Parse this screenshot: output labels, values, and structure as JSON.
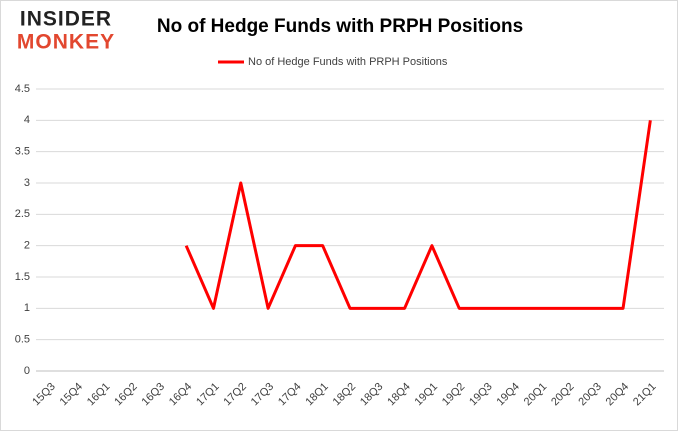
{
  "logo": [
    "INSIDER",
    "MONKEY"
  ],
  "chart_data": {
    "type": "line",
    "title": "No of Hedge Funds with PRPH Positions",
    "categories": [
      "15Q3",
      "15Q4",
      "16Q1",
      "16Q2",
      "16Q3",
      "16Q4",
      "17Q1",
      "17Q2",
      "17Q3",
      "17Q4",
      "18Q1",
      "18Q2",
      "18Q3",
      "18Q4",
      "19Q1",
      "19Q2",
      "19Q3",
      "19Q4",
      "20Q1",
      "20Q2",
      "20Q3",
      "20Q4",
      "21Q1"
    ],
    "series": [
      {
        "name": "No of Hedge Funds with PRPH Positions",
        "color": "#ff0000",
        "values": [
          null,
          null,
          null,
          null,
          null,
          2,
          1,
          3,
          1,
          2,
          2,
          1,
          1,
          1,
          2,
          1,
          1,
          1,
          1,
          1,
          1,
          1,
          4
        ]
      }
    ],
    "ylim": [
      0,
      4.5
    ],
    "yticks": [
      0,
      0.5,
      1,
      1.5,
      2,
      2.5,
      3,
      3.5,
      4,
      4.5
    ],
    "grid": true,
    "legend": "top"
  }
}
